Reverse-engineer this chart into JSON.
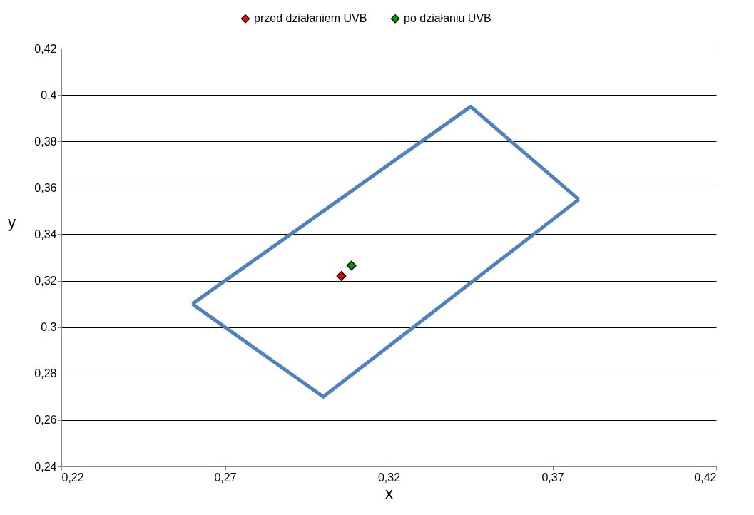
{
  "chart_data": {
    "type": "scatter",
    "xlabel": "x",
    "ylabel": "y",
    "xlim": [
      0.22,
      0.42
    ],
    "xticks": [
      {
        "value": 0.22,
        "label": "0,22"
      },
      {
        "value": 0.27,
        "label": "0,27"
      },
      {
        "value": 0.32,
        "label": "0,32"
      },
      {
        "value": 0.37,
        "label": "0,37"
      },
      {
        "value": 0.42,
        "label": "0,42"
      }
    ],
    "ylim": [
      0.24,
      0.42
    ],
    "yticks": [
      {
        "value": 0.24,
        "label": "0,24"
      },
      {
        "value": 0.26,
        "label": "0,26"
      },
      {
        "value": 0.28,
        "label": "0,28"
      },
      {
        "value": 0.3,
        "label": "0,3"
      },
      {
        "value": 0.32,
        "label": "0,32"
      },
      {
        "value": 0.34,
        "label": "0,34"
      },
      {
        "value": 0.36,
        "label": "0,36"
      },
      {
        "value": 0.38,
        "label": "0,38"
      },
      {
        "value": 0.4,
        "label": "0,4"
      },
      {
        "value": 0.42,
        "label": "0,42"
      }
    ],
    "grid": "y",
    "legend": "top",
    "series": [
      {
        "type": "line",
        "color": "#4f81bd",
        "x": [
          0.26,
          0.345,
          0.378
        ],
        "values": [
          0.31,
          0.395,
          0.355
        ],
        "marker": "none",
        "line_style": "solid"
      },
      {
        "type": "line",
        "color": "#4f81bd",
        "x": [
          0.26,
          0.3,
          0.378
        ],
        "values": [
          0.31,
          0.27,
          0.355
        ],
        "marker": "none",
        "line_style": "solid"
      },
      {
        "type": "scatter",
        "name": "przed działaniem UVB",
        "color": "#ff0000",
        "x": [
          0.3055
        ],
        "values": [
          0.322
        ],
        "marker": "diamond"
      },
      {
        "type": "scatter",
        "name": "po działaniu UVB",
        "color": "#00a000",
        "x": [
          0.3086
        ],
        "values": [
          0.3265
        ],
        "marker": "diamond"
      }
    ]
  }
}
